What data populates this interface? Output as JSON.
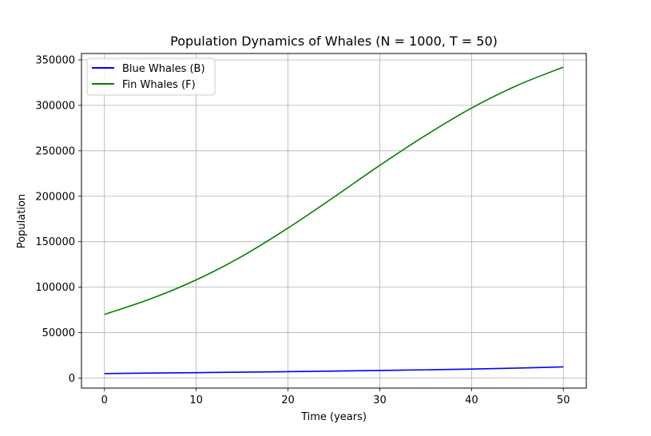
{
  "chart_data": {
    "type": "line",
    "title": "Population Dynamics of Whales (N = 1000, T = 50)",
    "xlabel": "Time (years)",
    "ylabel": "Population",
    "xlim": [
      -2.5,
      52.5
    ],
    "ylim": [
      -11000,
      357000
    ],
    "xticks": [
      0,
      10,
      20,
      30,
      40,
      50
    ],
    "yticks": [
      0,
      50000,
      100000,
      150000,
      200000,
      250000,
      300000,
      350000
    ],
    "grid": true,
    "legend_position": "upper-left",
    "x": [
      0,
      5,
      10,
      15,
      20,
      25,
      30,
      35,
      40,
      45,
      50
    ],
    "series": [
      {
        "name": "Blue Whales (B)",
        "color": "#0000ff",
        "values": [
          5000,
          5500,
          6000,
          6500,
          7100,
          7700,
          8400,
          9100,
          9900,
          11000,
          12300
        ]
      },
      {
        "name": "Fin Whales (F)",
        "color": "#008000",
        "values": [
          70000,
          87000,
          108000,
          134000,
          165000,
          199000,
          234000,
          267000,
          297000,
          322000,
          342000
        ]
      }
    ]
  }
}
